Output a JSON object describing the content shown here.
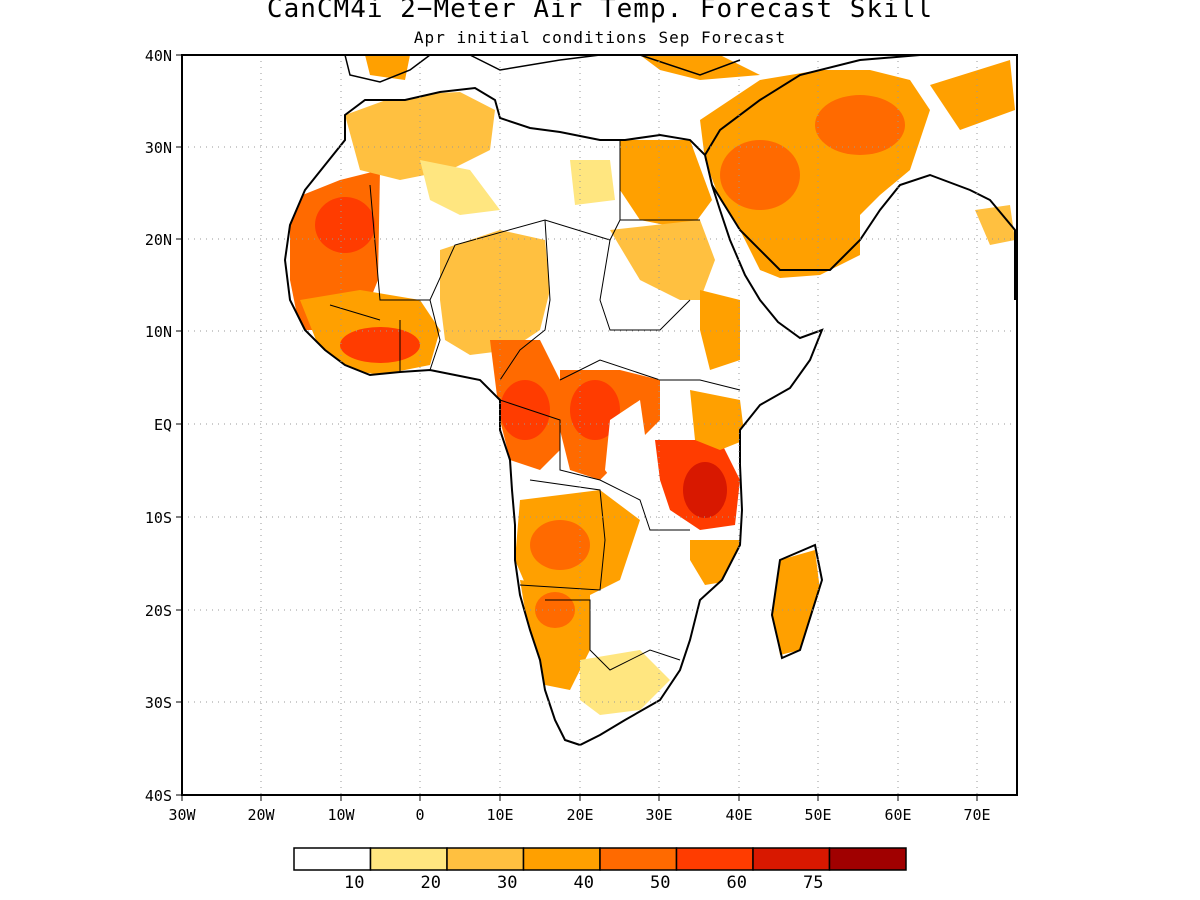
{
  "title": "CanCM4i 2−Meter Air Temp. Forecast Skill",
  "subtitle": "Apr initial conditions  Sep Forecast",
  "lat_labels": [
    "40N",
    "30N",
    "20N",
    "10N",
    "EQ",
    "10S",
    "20S",
    "30S",
    "40S"
  ],
  "lon_labels": [
    "30W",
    "20W",
    "10W",
    "0",
    "10E",
    "20E",
    "30E",
    "40E",
    "50E",
    "60E",
    "70E"
  ],
  "colorbar": {
    "colors": [
      "#ffffff",
      "#ffe680",
      "#ffc040",
      "#ffa000",
      "#ff6a00",
      "#ff3c00",
      "#d81800",
      "#a00000"
    ],
    "labels": [
      "10",
      "20",
      "30",
      "40",
      "50",
      "60",
      "75"
    ]
  },
  "map_extent": {
    "lon": [
      -30,
      75
    ],
    "lat": [
      -40,
      40
    ]
  },
  "grid": "dotted"
}
